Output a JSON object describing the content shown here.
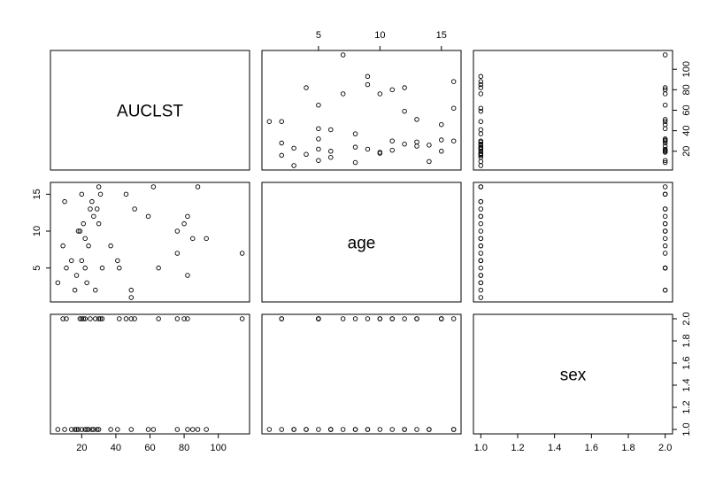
{
  "chart_data": {
    "type": "scatter",
    "title": "",
    "variables": [
      "AUCLST",
      "age",
      "sex"
    ],
    "ranges": {
      "AUCLST": [
        6,
        114
      ],
      "age": [
        1,
        16
      ],
      "sex": [
        1,
        2
      ]
    },
    "axis_ticks": {
      "AUCLST": [
        20,
        40,
        60,
        80,
        100
      ],
      "age": [
        5,
        10,
        15
      ],
      "sex": [
        1.0,
        1.2,
        1.4,
        1.6,
        1.8,
        2.0
      ]
    },
    "axis_tick_labels": {
      "AUCLST": [
        "20",
        "40",
        "60",
        "80",
        "100"
      ],
      "age": [
        "5",
        "10",
        "15"
      ],
      "sex": [
        "1.0",
        "1.2",
        "1.4",
        "1.6",
        "1.8",
        "2.0"
      ]
    },
    "observations": {
      "AUCLST": [
        6,
        9,
        10,
        11,
        14,
        16,
        17,
        18,
        19,
        20,
        20,
        21,
        22,
        22,
        23,
        24,
        25,
        26,
        27,
        28,
        29,
        30,
        30,
        31,
        32,
        37,
        41,
        42,
        46,
        49,
        49,
        51,
        59,
        62,
        65,
        76,
        76,
        80,
        82,
        82,
        85,
        88,
        93,
        114
      ],
      "age": [
        3,
        8,
        14,
        5,
        6,
        2,
        4,
        10,
        10,
        15,
        6,
        11,
        5,
        9,
        3,
        8,
        13,
        14,
        12,
        2,
        13,
        16,
        11,
        15,
        5,
        8,
        6,
        5,
        15,
        1,
        2,
        13,
        12,
        16,
        5,
        7,
        10,
        11,
        12,
        4,
        9,
        16,
        9,
        7
      ],
      "sex": [
        1,
        2,
        1,
        2,
        1,
        1,
        1,
        1,
        2,
        2,
        1,
        2,
        1,
        2,
        1,
        1,
        2,
        1,
        1,
        2,
        1,
        2,
        1,
        2,
        2,
        1,
        1,
        2,
        2,
        1,
        2,
        2,
        1,
        1,
        2,
        1,
        2,
        2,
        2,
        1,
        1,
        1,
        1,
        2
      ]
    }
  }
}
